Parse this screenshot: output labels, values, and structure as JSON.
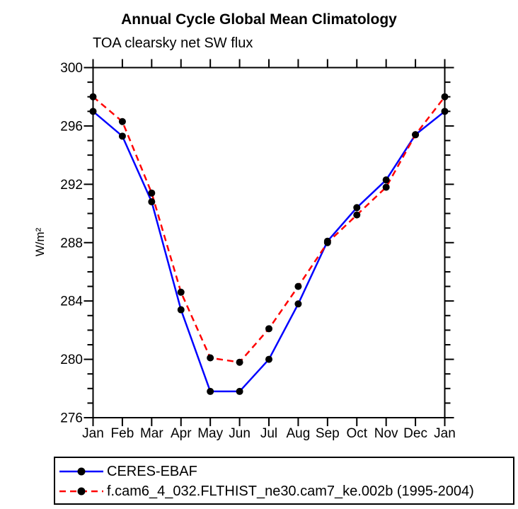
{
  "chart_data": {
    "type": "line",
    "title": "Annual Cycle Global Mean Climatology",
    "subtitle": "TOA clearsky net SW flux",
    "ylabel": "W/m²",
    "xlabel": "",
    "categories": [
      "Jan",
      "Feb",
      "Mar",
      "Apr",
      "May",
      "Jun",
      "Jul",
      "Aug",
      "Sep",
      "Oct",
      "Nov",
      "Dec",
      "Jan"
    ],
    "ylim": [
      276,
      300
    ],
    "ytick_major": [
      276,
      280,
      284,
      288,
      292,
      296,
      300
    ],
    "ytick_minor_step": 1,
    "grid": false,
    "legend_position": "bottom-left-box",
    "axis_color": "#000000",
    "marker_color": "#000000",
    "series": [
      {
        "name": "CERES-EBAF",
        "color": "#0000ff",
        "style": "solid",
        "marker": "circle",
        "values": [
          297.0,
          295.3,
          290.8,
          283.4,
          277.8,
          277.8,
          280.0,
          283.8,
          288.1,
          290.4,
          292.3,
          295.4,
          297.0
        ]
      },
      {
        "name": "f.cam6_4_032.FLTHIST_ne30.cam7_ke.002b (1995-2004)",
        "color": "#ff0000",
        "style": "dashed",
        "marker": "circle",
        "values": [
          298.0,
          296.3,
          291.4,
          284.6,
          280.1,
          279.8,
          282.1,
          285.0,
          288.0,
          289.9,
          291.8,
          295.4,
          298.0
        ]
      }
    ]
  }
}
